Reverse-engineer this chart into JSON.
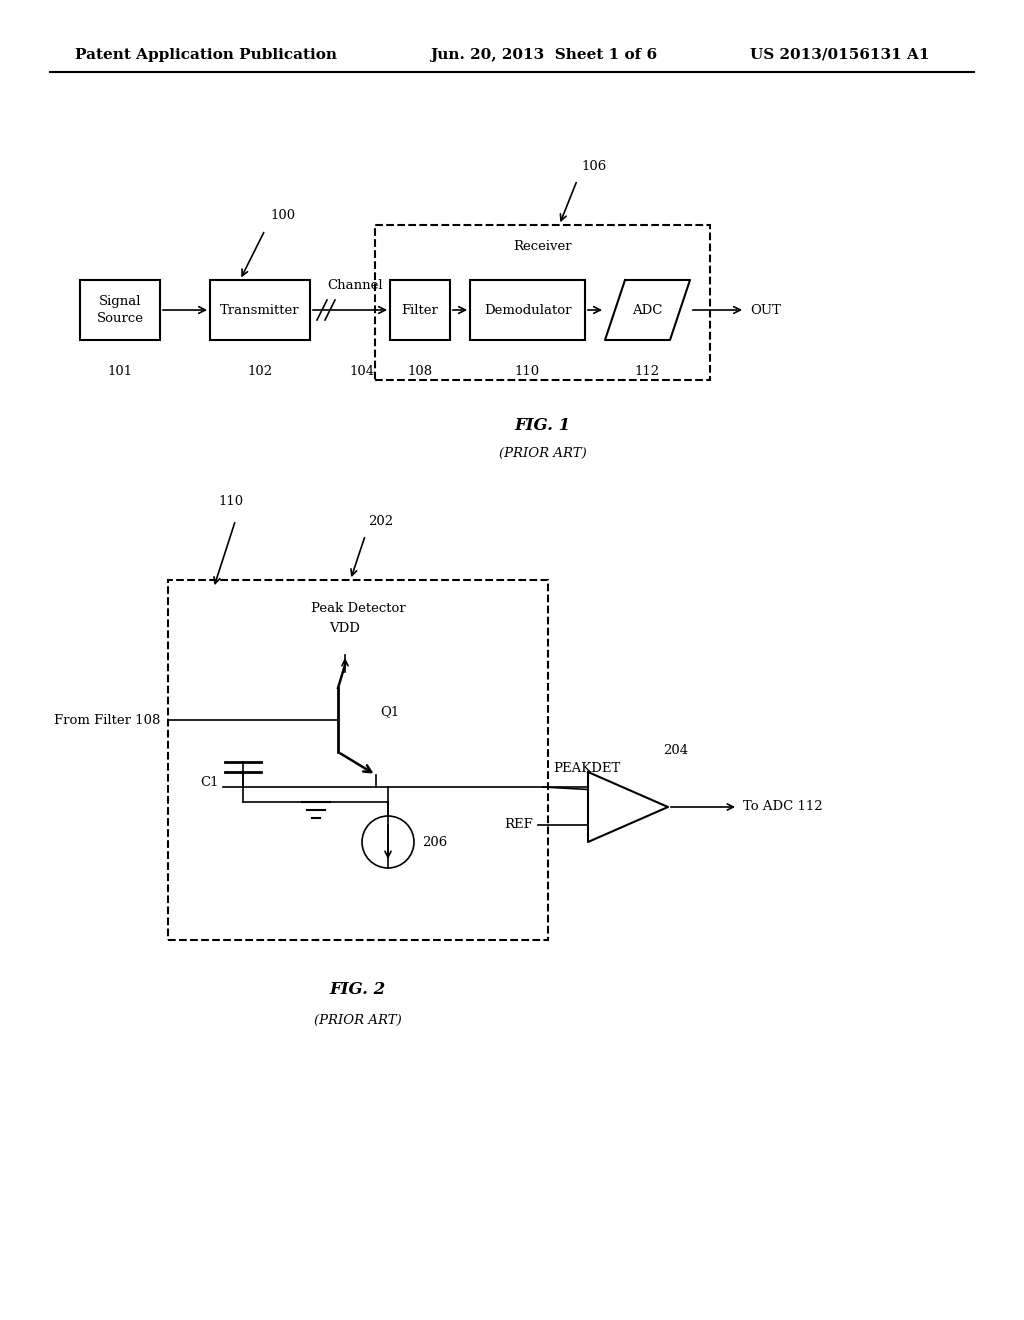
{
  "bg_color": "#ffffff",
  "text_color": "#000000",
  "header_left": "Patent Application Publication",
  "header_center": "Jun. 20, 2013  Sheet 1 of 6",
  "header_right": "US 2013/0156131 A1",
  "fig1_label": "FIG. 1",
  "fig1_sub": "(PRIOR ART)",
  "fig2_label": "FIG. 2",
  "fig2_sub": "(PRIOR ART)",
  "fig1_ref_100": "100",
  "fig1_ref_106": "106",
  "fig1_receiver_label": "Receiver",
  "fig1_channel_label": "Channel",
  "fig1_channel_ref": "104",
  "fig1_out_label": "OUT",
  "fig2_ref_110": "110",
  "fig2_ref_202": "202",
  "fig2_ref_204": "204",
  "fig2_ref_206": "206",
  "fig2_peak_detector_label": "Peak Detector",
  "fig2_vdd_label": "VDD",
  "fig2_q1_label": "Q1",
  "fig2_c1_label": "C1",
  "fig2_from_filter": "From Filter 108",
  "fig2_peakdet_label": "PEAKDET",
  "fig2_ref_label": "REF",
  "fig2_to_adc_label": "To ADC 112"
}
